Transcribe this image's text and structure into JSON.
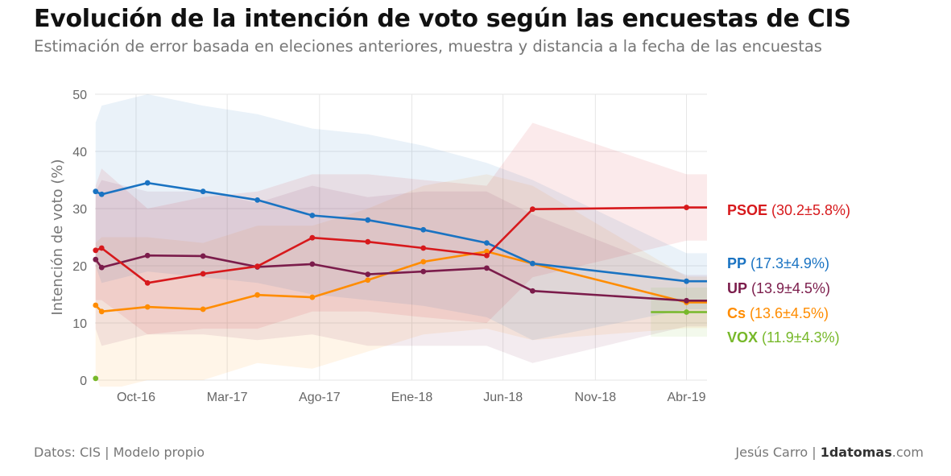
{
  "title": "Evolución de la intención de voto según las encuestas de CIS",
  "subtitle": "Estimación de error basada en eleciones anteriores, muestra y distancia a la fecha de las encuestas",
  "footer": {
    "source": "Datos: CIS | Modelo propio",
    "author": "Jesús Carro | ",
    "brand_bold": "1datomas",
    "brand_suffix": ".com"
  },
  "chart_data": {
    "type": "line",
    "ylabel": "Intención de voto (%)",
    "ylim": [
      0,
      50
    ],
    "yticks": [
      0,
      10,
      20,
      30,
      40,
      50
    ],
    "xlim": [
      "2016-07-25",
      "2019-05-05"
    ],
    "xticks": [
      {
        "date": "2016-10-01",
        "label": "Oct-16"
      },
      {
        "date": "2017-03-01",
        "label": "Mar-17"
      },
      {
        "date": "2017-08-01",
        "label": "Ago-17"
      },
      {
        "date": "2018-01-01",
        "label": "Ene-18"
      },
      {
        "date": "2018-06-01",
        "label": "Jun-18"
      },
      {
        "date": "2018-11-01",
        "label": "Nov-18"
      },
      {
        "date": "2019-04-01",
        "label": "Abr-19"
      }
    ],
    "grid": true,
    "series": [
      {
        "name": "PSOE",
        "value_label": "(30.2±5.8%)",
        "color": "#d7191c",
        "x": [
          "2016-07-26",
          "2016-08-05",
          "2016-10-20",
          "2017-01-20",
          "2017-04-20",
          "2017-07-20",
          "2017-10-20",
          "2018-01-20",
          "2018-05-05",
          "2018-07-20",
          "2019-04-01",
          "2019-05-05"
        ],
        "y": [
          22.7,
          23.1,
          17.0,
          18.6,
          19.9,
          24.9,
          24.2,
          23.1,
          21.8,
          29.9,
          30.2,
          30.2
        ],
        "upper": [
          34,
          37,
          30,
          32,
          33,
          36,
          36,
          35,
          34,
          45,
          36,
          36
        ],
        "lower": [
          14,
          14,
          8,
          9,
          9,
          12,
          12,
          11,
          10,
          18,
          24.4,
          24.4
        ]
      },
      {
        "name": "PP",
        "value_label": "(17.3±4.9%)",
        "color": "#1a73c2",
        "x": [
          "2016-07-26",
          "2016-08-05",
          "2016-10-20",
          "2017-01-20",
          "2017-04-20",
          "2017-07-20",
          "2017-10-20",
          "2018-01-20",
          "2018-05-05",
          "2018-07-20",
          "2019-04-01",
          "2019-05-05"
        ],
        "y": [
          33.0,
          32.5,
          34.5,
          33.0,
          31.5,
          28.8,
          28.0,
          26.3,
          24.0,
          20.4,
          17.3,
          17.3
        ],
        "upper": [
          45,
          48,
          50,
          48,
          46.5,
          44,
          43,
          41,
          38,
          35,
          22.2,
          22.2
        ],
        "lower": [
          20,
          17,
          19,
          18,
          17,
          15,
          14,
          13,
          11,
          7,
          12.4,
          12.4
        ]
      },
      {
        "name": "UP",
        "value_label": "(13.9±4.5%)",
        "color": "#7b1c4b",
        "x": [
          "2016-07-26",
          "2016-08-05",
          "2016-10-20",
          "2017-01-20",
          "2017-04-20",
          "2017-07-20",
          "2017-10-20",
          "2018-01-20",
          "2018-05-05",
          "2018-07-20",
          "2019-04-01",
          "2019-05-05"
        ],
        "y": [
          21.1,
          19.7,
          21.8,
          21.7,
          19.8,
          20.3,
          18.5,
          19.0,
          19.6,
          15.6,
          13.9,
          13.9
        ],
        "upper": [
          33,
          35,
          33,
          33,
          31,
          34,
          32,
          33,
          33,
          29,
          18.4,
          18.4
        ],
        "lower": [
          9,
          6,
          8,
          8,
          7,
          8,
          6,
          6,
          6,
          3,
          9.4,
          9.4
        ]
      },
      {
        "name": "Cs",
        "value_label": "(13.6±4.5%)",
        "color": "#ff8c00",
        "x": [
          "2016-07-26",
          "2016-08-05",
          "2016-10-20",
          "2017-01-20",
          "2017-04-20",
          "2017-07-20",
          "2017-10-20",
          "2018-01-20",
          "2018-05-05",
          "2018-07-20",
          "2019-04-01",
          "2019-05-05"
        ],
        "y": [
          13.1,
          12.0,
          12.8,
          12.4,
          14.9,
          14.5,
          17.5,
          20.7,
          22.5,
          20.4,
          13.6,
          13.6
        ],
        "upper": [
          24,
          25,
          25,
          24,
          27,
          27,
          30,
          34,
          36,
          34,
          18.1,
          18.1
        ],
        "lower": [
          1,
          -2,
          0,
          0,
          3,
          2,
          5,
          8,
          9,
          7,
          9.1,
          9.1
        ]
      },
      {
        "name": "VOX",
        "value_label": "(11.9±4.3%)",
        "color": "#77b82a",
        "x": [
          "2019-02-01",
          "2019-04-01",
          "2019-05-05"
        ],
        "y": [
          11.9,
          11.9,
          11.9
        ],
        "upper": [
          16.2,
          16.2,
          16.2
        ],
        "lower": [
          7.6,
          7.6,
          7.6
        ],
        "markers": [
          {
            "x": "2016-07-26",
            "y": 0.3
          },
          {
            "x": "2019-04-01",
            "y": 11.9
          }
        ]
      }
    ]
  }
}
